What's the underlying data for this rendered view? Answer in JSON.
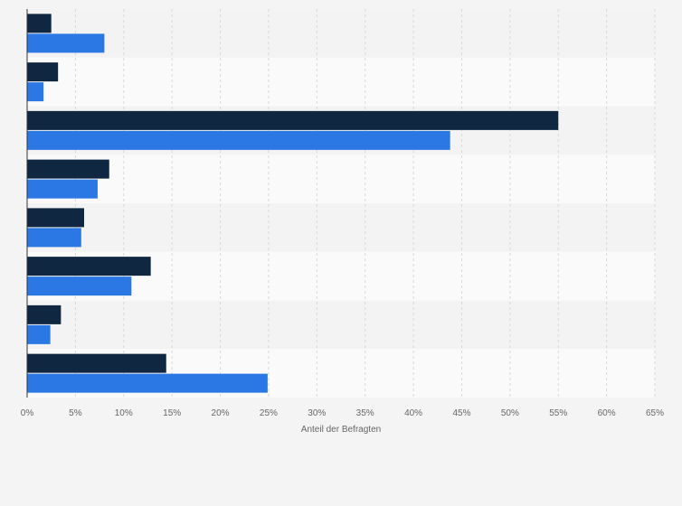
{
  "chart_data": {
    "type": "bar",
    "orientation": "horizontal",
    "categories": [
      "",
      "",
      "",
      "",
      "",
      "",
      "",
      ""
    ],
    "series": [
      {
        "name": "",
        "color": "#0f2741",
        "values": [
          2.5,
          3.2,
          55.0,
          8.5,
          5.9,
          12.8,
          3.5,
          14.4
        ]
      },
      {
        "name": "",
        "color": "#2b78e4",
        "values": [
          8.0,
          1.7,
          43.8,
          7.3,
          5.6,
          10.8,
          2.4,
          24.9
        ]
      }
    ],
    "xlim": [
      0,
      65
    ],
    "xticks": [
      0,
      5,
      10,
      15,
      20,
      25,
      30,
      35,
      40,
      45,
      50,
      55,
      60,
      65
    ],
    "xtick_labels": [
      "0%",
      "5%",
      "10%",
      "15%",
      "20%",
      "25%",
      "30%",
      "35%",
      "40%",
      "45%",
      "50%",
      "55%",
      "60%",
      "65%"
    ],
    "xlabel": "Anteil der Befragten",
    "ylabel": "",
    "title": "",
    "grid": "vertical dashed",
    "legend": "none",
    "band_colors": [
      "#f3f3f3",
      "#fafafa"
    ]
  }
}
